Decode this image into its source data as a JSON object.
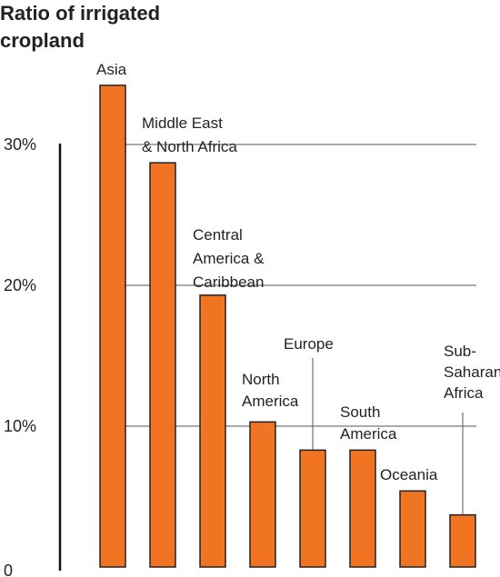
{
  "chart_data": {
    "type": "bar",
    "title": [
      "Ratio of irrigated",
      "cropland"
    ],
    "categories": [
      {
        "label": [
          "Asia"
        ]
      },
      {
        "label": [
          "Middle East",
          "& North Africa"
        ]
      },
      {
        "label": [
          "Central",
          "America &",
          "Caribbean"
        ]
      },
      {
        "label": [
          "North",
          "America"
        ]
      },
      {
        "label": [
          "Europe"
        ]
      },
      {
        "label": [
          "South",
          "America"
        ]
      },
      {
        "label": [
          "Oceania"
        ]
      },
      {
        "label": [
          "Sub-",
          "Saharan",
          "Africa"
        ]
      }
    ],
    "values": [
      34.2,
      28.7,
      19.3,
      10.3,
      8.3,
      8.3,
      5.4,
      3.7
    ],
    "ylim": [
      0,
      35
    ],
    "yticks": [
      {
        "value": 0,
        "label": "0"
      },
      {
        "value": 10,
        "label": "10%"
      },
      {
        "value": 20,
        "label": "20%"
      },
      {
        "value": 30,
        "label": "30%"
      }
    ],
    "grid": true,
    "bar_color": "#F07422",
    "bar_stroke": "#222222"
  }
}
